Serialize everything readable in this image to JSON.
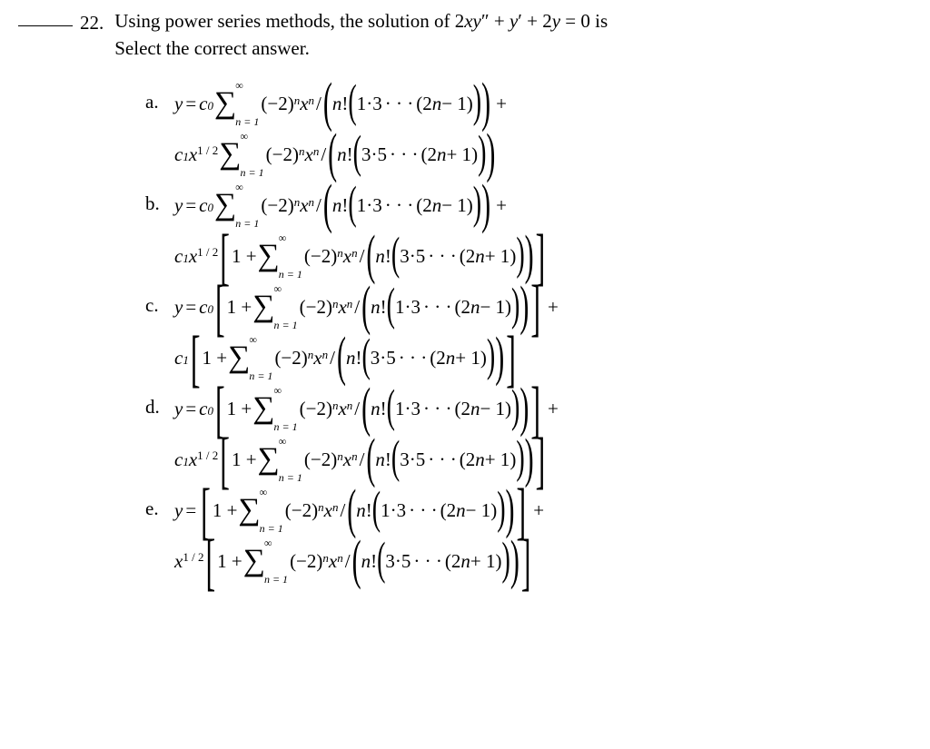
{
  "question": {
    "number": "22.",
    "stem_fragments": {
      "pre": "Using power series methods, the solution of  ",
      "eqn_2xy": "2",
      "var_x": "x",
      "var_y": "y",
      "dpp": "″",
      "plus": " + ",
      "dp": "′",
      "plus2": " + 2",
      "eq0is": " = 0  is",
      "select": "Select the correct answer."
    }
  },
  "common": {
    "y_eq": "y",
    "equals": " = ",
    "c0": "c",
    "sub0": "0",
    "c1": "c",
    "sub1": "1",
    "x": "x",
    "half": "1 / 2",
    "sigma": "∑",
    "inf": "∞",
    "n1": "n = 1",
    "m2": "(−2)",
    "supn": "n",
    "xn": "x",
    "slash": "/",
    "nfact": "n",
    "excl": "!",
    "one": "1",
    "three": "3",
    "five": "5",
    "dot": "·",
    "dots": "· · ·",
    "open0": "(",
    "close0": ")",
    "open1": "(",
    "close1": ")",
    "open2": "(",
    "close2": ")",
    "openb": "[",
    "closeb": "]",
    "twonm1": "2",
    "nvar": "n",
    "m1": "− 1",
    "p1": "+ 1",
    "plus": "+",
    "oneplus": "1 +"
  },
  "choices": {
    "a": "a.",
    "b": "b.",
    "c": "c.",
    "d": "d.",
    "e": "e."
  }
}
